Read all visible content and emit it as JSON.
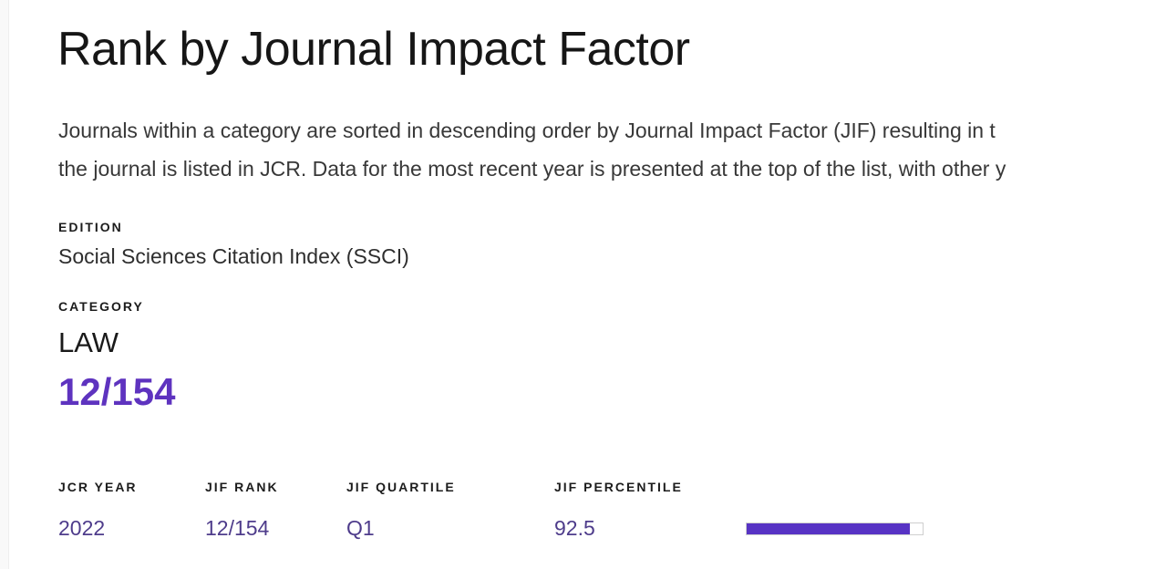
{
  "page": {
    "title": "Rank by Journal Impact Factor",
    "description_lines": [
      "Journals within a category are sorted in descending order by Journal Impact Factor (JIF) resulting in t",
      "the journal is listed in JCR. Data for the most recent year is presented at the top of the list, with other y"
    ]
  },
  "details": {
    "edition": {
      "label": "EDITION",
      "value": "Social Sciences Citation Index (SSCI)"
    },
    "category": {
      "label": "CATEGORY",
      "value": "LAW",
      "rank": "12/154"
    }
  },
  "rank_table": {
    "columns": [
      "JCR YEAR",
      "JIF RANK",
      "JIF QUARTILE",
      "JIF PERCENTILE"
    ],
    "rows": [
      {
        "jcr_year": "2022",
        "jif_rank": "12/154",
        "jif_quartile": "Q1",
        "jif_percentile": "92.5",
        "percentile_fill_percent": 92.5
      }
    ]
  },
  "colors": {
    "accent_purple": "#5e33bf",
    "row_text_purple": "#4e3c8b",
    "bar_fill_purple": "#5733c4",
    "bar_border": "#cfcfcf",
    "text_dark": "#1c1c1c"
  }
}
